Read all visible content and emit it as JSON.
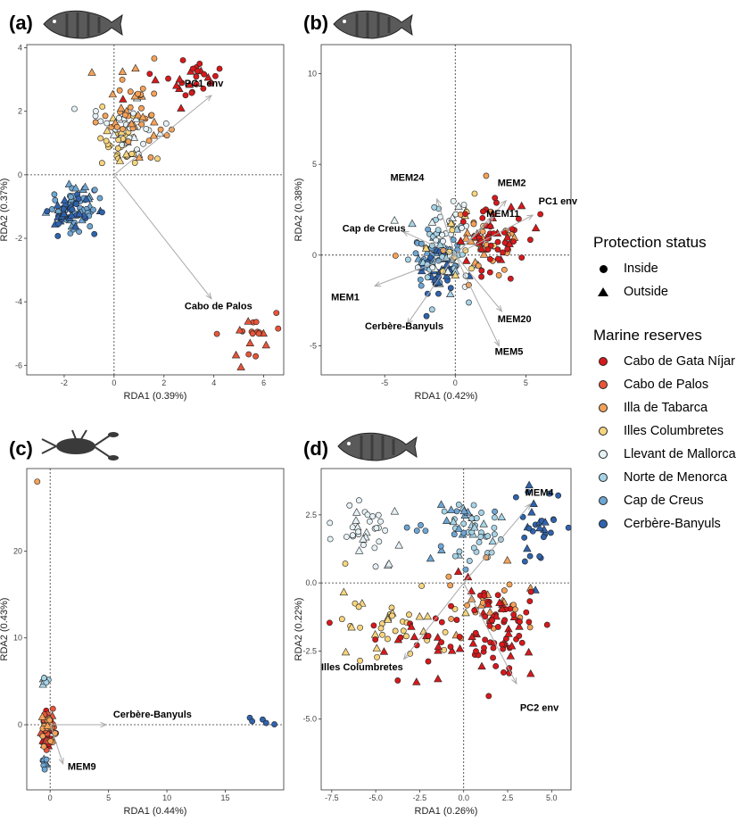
{
  "legend": {
    "protection_title": "Protection status",
    "protection": [
      {
        "label": "Inside",
        "shape": "circle"
      },
      {
        "label": "Outside",
        "shape": "triangle"
      }
    ],
    "reserves_title": "Marine reserves",
    "reserves": [
      {
        "label": "Cabo de Gata Níjar",
        "color": "#d7191c"
      },
      {
        "label": "Cabo de Palos",
        "color": "#e8553a"
      },
      {
        "label": "Illa de Tabarca",
        "color": "#f4a259"
      },
      {
        "label": "Illes Columbretes",
        "color": "#f7d57d"
      },
      {
        "label": "Llevant de Mallorca",
        "color": "#e6f2f7"
      },
      {
        "label": "Norte de Menorca",
        "color": "#a6d3e6"
      },
      {
        "label": "Cap de Creus",
        "color": "#6ea6d3"
      },
      {
        "label": "Cerbère-Banyuls",
        "color": "#2f63ad"
      }
    ]
  },
  "chart_data": [
    {
      "type": "scatter",
      "panel": "(a)",
      "icon": "fish-silhouette-icon",
      "xlabel": "RDA1 (0.39%)",
      "ylabel": "RDA2 (0.37%)",
      "xlim": [
        -3.5,
        6.8
      ],
      "ylim": [
        -6.3,
        4.1
      ],
      "xticks": [
        -2,
        0,
        2,
        4,
        6
      ],
      "yticks": [
        -6,
        -4,
        -2,
        0,
        2,
        4
      ],
      "clusters": [
        {
          "group": "Cap de Creus",
          "cx": -1.6,
          "cy": -1.0,
          "sx": 0.55,
          "sy": 0.35,
          "n": 55
        },
        {
          "group": "Cerbère-Banyuls",
          "cx": -1.8,
          "cy": -1.2,
          "sx": 0.5,
          "sy": 0.3,
          "n": 35
        },
        {
          "group": "Illes Columbretes",
          "cx": 0.3,
          "cy": 1.0,
          "sx": 0.5,
          "sy": 0.45,
          "n": 35
        },
        {
          "group": "Llevant de Mallorca",
          "cx": 0.5,
          "cy": 1.5,
          "sx": 0.6,
          "sy": 0.5,
          "n": 30
        },
        {
          "group": "Illa de Tabarca",
          "cx": 0.9,
          "cy": 2.0,
          "sx": 0.7,
          "sy": 0.6,
          "n": 45
        },
        {
          "group": "Cabo de Gata Níjar",
          "cx": 2.9,
          "cy": 3.0,
          "sx": 0.75,
          "sy": 0.4,
          "n": 28
        },
        {
          "group": "Cabo de Palos",
          "cx": 5.3,
          "cy": -5.0,
          "sx": 0.55,
          "sy": 0.4,
          "n": 20
        }
      ],
      "arrows": [
        {
          "label": "PC1 env",
          "x": 3.9,
          "y": 2.5
        },
        {
          "label": "Cabo de Palos",
          "x": 3.9,
          "y": -3.9
        }
      ]
    },
    {
      "type": "scatter",
      "panel": "(b)",
      "icon": "fish-silhouette-icon",
      "xlabel": "RDA1 (0.42%)",
      "ylabel": "RDA2 (0.38%)",
      "xlim": [
        -9.5,
        8.2
      ],
      "ylim": [
        -6.6,
        11.6
      ],
      "xticks": [
        -5,
        0,
        5
      ],
      "yticks": [
        -5,
        0,
        5,
        10
      ],
      "clusters": [
        {
          "group": "Cap de Creus",
          "cx": -1.6,
          "cy": -0.3,
          "sx": 0.9,
          "sy": 0.9,
          "n": 45
        },
        {
          "group": "Cerbère-Banyuls",
          "cx": -1.3,
          "cy": -0.8,
          "sx": 0.7,
          "sy": 0.9,
          "n": 35
        },
        {
          "group": "Norte de Menorca",
          "cx": -1.0,
          "cy": 0.3,
          "sx": 1.1,
          "sy": 1.1,
          "n": 35
        },
        {
          "group": "Llevant de Mallorca",
          "cx": -0.6,
          "cy": 0.6,
          "sx": 1.3,
          "sy": 1.3,
          "n": 25
        },
        {
          "group": "Illes Columbretes",
          "cx": 0.6,
          "cy": 1.0,
          "sx": 1.3,
          "sy": 1.0,
          "n": 20
        },
        {
          "group": "Illa de Tabarca",
          "cx": 1.8,
          "cy": 0.9,
          "sx": 1.5,
          "sy": 1.1,
          "n": 35
        },
        {
          "group": "Cabo de Gata Níjar",
          "cx": 2.2,
          "cy": 1.0,
          "sx": 1.5,
          "sy": 1.1,
          "n": 55
        }
      ],
      "arrows": [
        {
          "label": "MEM24",
          "x": -1.3,
          "y": 3.1
        },
        {
          "label": "MEM2",
          "x": 3.6,
          "y": 3.0
        },
        {
          "label": "MEM11",
          "x": 2.7,
          "y": 2.1
        },
        {
          "label": "PC1 env",
          "x": 5.5,
          "y": 2.2
        },
        {
          "label": "Cap de Creus",
          "x": -3.7,
          "y": 1.3
        },
        {
          "label": "MEM1",
          "x": -5.7,
          "y": -1.7
        },
        {
          "label": "Cerbère-Banyuls",
          "x": -3.4,
          "y": -3.8
        },
        {
          "label": "MEM20",
          "x": 3.3,
          "y": -3.1
        },
        {
          "label": "MEM5",
          "x": 3.1,
          "y": -5.0
        }
      ],
      "label_positions": [
        {
          "label": "MEM24",
          "x": -4.6,
          "y": 4.1
        },
        {
          "label": "MEM2",
          "x": 3.0,
          "y": 3.8
        },
        {
          "label": "MEM11",
          "x": 2.2,
          "y": 2.1
        },
        {
          "label": "PC1 env",
          "x": 5.9,
          "y": 2.8
        },
        {
          "label": "Cap de Creus",
          "x": -8.0,
          "y": 1.3
        },
        {
          "label": "MEM1",
          "x": -8.8,
          "y": -2.5
        },
        {
          "label": "Cerbère-Banyuls",
          "x": -6.4,
          "y": -4.1
        },
        {
          "label": "MEM20",
          "x": 3.0,
          "y": -3.7
        },
        {
          "label": "MEM5",
          "x": 2.8,
          "y": -5.5
        }
      ]
    },
    {
      "type": "scatter",
      "panel": "(c)",
      "icon": "lobster-icon",
      "xlabel": "RDA1 (0.44%)",
      "ylabel": "RDA2 (0.43%)",
      "xlim": [
        -2.0,
        20.0
      ],
      "ylim": [
        -7.5,
        29.5
      ],
      "xticks": [
        0,
        5,
        10,
        15
      ],
      "yticks": [
        0,
        10,
        20
      ],
      "clusters": [
        {
          "group": "Cabo de Gata Níjar",
          "cx": -0.2,
          "cy": -0.6,
          "sx": 0.25,
          "sy": 1.3,
          "n": 35
        },
        {
          "group": "Cabo de Palos",
          "cx": -0.3,
          "cy": 0.0,
          "sx": 0.3,
          "sy": 1.0,
          "n": 25
        },
        {
          "group": "Illa de Tabarca",
          "cx": -0.2,
          "cy": 0.2,
          "sx": 0.3,
          "sy": 0.8,
          "n": 20
        },
        {
          "group": "Norte de Menorca",
          "cx": -0.4,
          "cy": 5.0,
          "sx": 0.2,
          "sy": 0.3,
          "n": 8
        },
        {
          "group": "Cap de Creus",
          "cx": -0.4,
          "cy": -4.3,
          "sx": 0.2,
          "sy": 0.3,
          "n": 8
        }
      ],
      "extra_points": [
        {
          "group": "Illa de Tabarca",
          "x": -1.1,
          "y": 28.0
        },
        {
          "group": "Cerbère-Banyuls",
          "x": 17.1,
          "y": 0.8
        },
        {
          "group": "Cerbère-Banyuls",
          "x": 17.3,
          "y": 0.4
        },
        {
          "group": "Cerbère-Banyuls",
          "x": 18.2,
          "y": 0.6
        },
        {
          "group": "Cerbère-Banyuls",
          "x": 18.5,
          "y": 0.2
        },
        {
          "group": "Cerbère-Banyuls",
          "x": 19.2,
          "y": 0.05
        }
      ],
      "arrows": [
        {
          "label": "Cerbère-Banyuls",
          "x": 4.8,
          "y": 0.0
        },
        {
          "label": "MEM9",
          "x": 1.1,
          "y": -4.5
        }
      ],
      "label_positions": [
        {
          "label": "Cerbère-Banyuls",
          "x": 5.4,
          "y": 0.8
        },
        {
          "label": "MEM9",
          "x": 1.5,
          "y": -5.2
        }
      ]
    },
    {
      "type": "scatter",
      "panel": "(d)",
      "icon": "fish-silhouette-icon",
      "xlabel": "RDA1 (0.26%)",
      "ylabel": "RDA2 (0.22%)",
      "xlim": [
        -8.1,
        6.1
      ],
      "ylim": [
        -7.6,
        4.2
      ],
      "xticks": [
        -7.5,
        -5.0,
        -2.5,
        0.0,
        2.5,
        5.0
      ],
      "yticks": [
        -5.0,
        -2.5,
        0.0,
        2.5
      ],
      "clusters": [
        {
          "group": "Llevant de Mallorca",
          "cx": -5.6,
          "cy": 1.8,
          "sx": 1.1,
          "sy": 0.6,
          "n": 35
        },
        {
          "group": "Norte de Menorca",
          "cx": 0.7,
          "cy": 1.9,
          "sx": 0.8,
          "sy": 0.6,
          "n": 40
        },
        {
          "group": "Cap de Creus",
          "cx": -1.0,
          "cy": 1.9,
          "sx": 1.3,
          "sy": 0.7,
          "n": 20
        },
        {
          "group": "Cerbère-Banyuls",
          "cx": 4.2,
          "cy": 2.0,
          "sx": 0.8,
          "sy": 0.7,
          "n": 30
        },
        {
          "group": "Illes Columbretes",
          "cx": -3.8,
          "cy": -1.4,
          "sx": 1.9,
          "sy": 0.6,
          "n": 40
        },
        {
          "group": "Illa de Tabarca",
          "cx": 1.2,
          "cy": -0.9,
          "sx": 1.2,
          "sy": 0.7,
          "n": 30
        },
        {
          "group": "Cabo de Gata Níjar",
          "cx": 2.0,
          "cy": -1.8,
          "sx": 1.1,
          "sy": 0.9,
          "n": 75
        },
        {
          "group": "Cabo de Gata Níjar",
          "cx": -2.3,
          "cy": -2.1,
          "sx": 1.6,
          "sy": 0.7,
          "n": 25
        }
      ],
      "arrows": [
        {
          "label": "MEM4",
          "x": 3.8,
          "y": 2.9
        },
        {
          "label": "Illes Columbretes",
          "x": -3.4,
          "y": -2.8
        },
        {
          "label": "PC2 env",
          "x": 3.0,
          "y": -3.7
        }
      ],
      "label_positions": [
        {
          "label": "MEM4",
          "x": 3.5,
          "y": 3.2
        },
        {
          "label": "Illes Columbretes",
          "x": -8.1,
          "y": -3.2
        },
        {
          "label": "PC2 env",
          "x": 3.2,
          "y": -4.7
        }
      ]
    }
  ]
}
